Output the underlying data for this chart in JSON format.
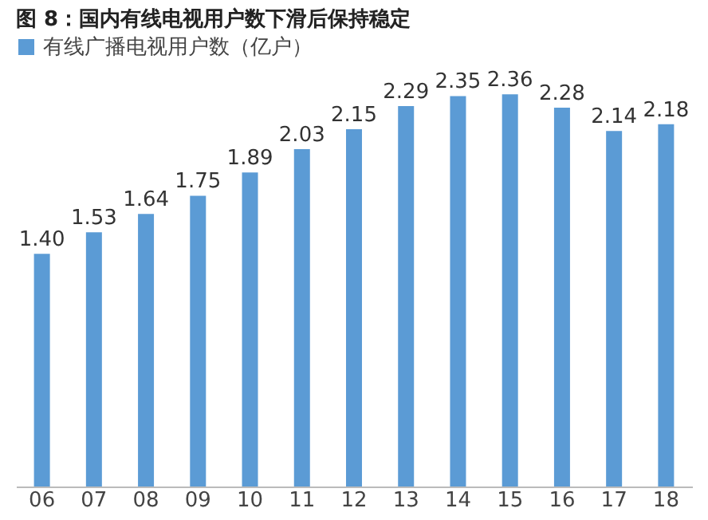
{
  "chart_data": {
    "type": "bar",
    "title": "图 8：国内有线电视用户数下滑后保持稳定",
    "categories": [
      "06",
      "07",
      "08",
      "09",
      "10",
      "11",
      "12",
      "13",
      "14",
      "15",
      "16",
      "17",
      "18"
    ],
    "series": [
      {
        "name": "有线广播电视用户数（亿户）",
        "color": "#5b9bd5",
        "values": [
          1.4,
          1.53,
          1.64,
          1.75,
          1.89,
          2.03,
          2.15,
          2.29,
          2.35,
          2.36,
          2.28,
          2.14,
          2.18
        ],
        "value_labels": [
          "1.40",
          "1.53",
          "1.64",
          "1.75",
          "1.89",
          "2.03",
          "2.15",
          "2.29",
          "2.35",
          "2.36",
          "2.28",
          "2.14",
          "2.18"
        ]
      }
    ],
    "legend": "top",
    "grid": false
  }
}
